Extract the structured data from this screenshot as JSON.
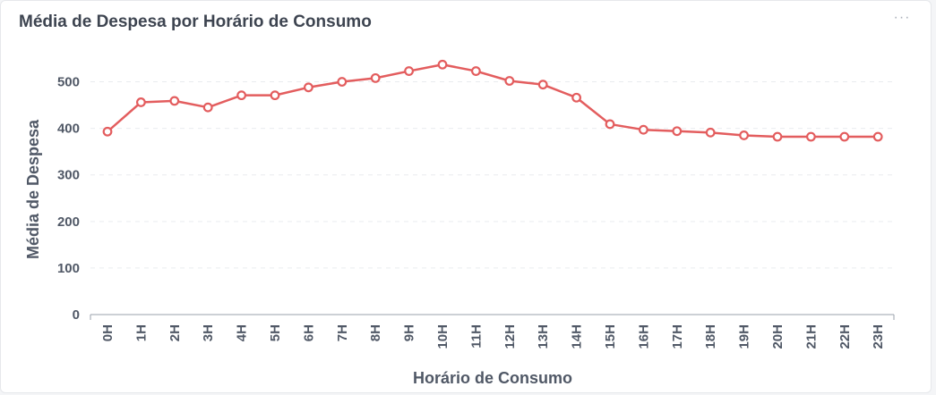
{
  "card": {
    "title": "Média de Despesa por Horário de Consumo",
    "more_icon": "more-horizontal-icon",
    "more_glyph": "···"
  },
  "colors": {
    "series": "#e35d5e",
    "grid": "#e9ecef",
    "axis": "#9aa1ab",
    "text": "#505866"
  },
  "chart_data": {
    "type": "line",
    "title": "Média de Despesa por Horário de Consumo",
    "xlabel": "Horário de Consumo",
    "ylabel": "Média de Despesa",
    "categories": [
      "0H",
      "1H",
      "2H",
      "3H",
      "4H",
      "5H",
      "6H",
      "7H",
      "8H",
      "9H",
      "10H",
      "11H",
      "12H",
      "13H",
      "14H",
      "15H",
      "16H",
      "17H",
      "18H",
      "19H",
      "20H",
      "21H",
      "22H",
      "23H"
    ],
    "series": [
      {
        "values": [
          393,
          456,
          459,
          445,
          471,
          471,
          488,
          500,
          508,
          523,
          537,
          523,
          502,
          494,
          466,
          409,
          397,
          394,
          391,
          385,
          382,
          382,
          382,
          382
        ]
      }
    ],
    "yticks": [
      0,
      100,
      200,
      300,
      400,
      500
    ],
    "ylim": [
      0,
      540
    ],
    "grid": true,
    "legend": "none"
  }
}
